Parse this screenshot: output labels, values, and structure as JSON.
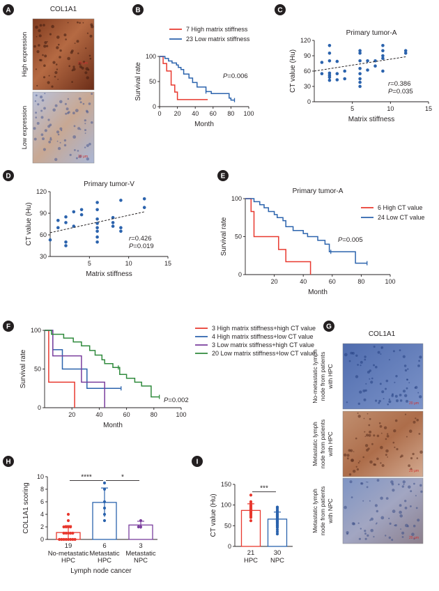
{
  "colors": {
    "red": "#e8382e",
    "blue": "#2b63ad",
    "green": "#2f8a3c",
    "purple": "#7a3e9d",
    "panel_letter_bg": "#231f20",
    "dot_blue": "#2b63ad",
    "stain_brown": "#9a4e2c",
    "stain_blue": "#6a83b8"
  },
  "panel_letters": [
    "A",
    "B",
    "C",
    "D",
    "E",
    "F",
    "G",
    "H",
    "I"
  ],
  "panel_a": {
    "title": "COL1A1",
    "labels": [
      "High expression",
      "Low expression"
    ],
    "scale_bar": "20 μm"
  },
  "panel_g": {
    "title": "COL1A1",
    "labels": [
      [
        "No-metastatic lymph",
        "node from patients",
        "with HPC"
      ],
      [
        "Metastatic lymph",
        "node from patients",
        "with HPC"
      ],
      [
        "Metastatic lymph",
        "node from patients",
        "with NPC"
      ]
    ],
    "scale_bar": "20 μm"
  },
  "chart_data": [
    {
      "id": "B",
      "type": "line",
      "subtype": "kaplan-meier",
      "title": "",
      "xlabel": "Month",
      "ylabel": "Survival rate",
      "xlim": [
        0,
        100
      ],
      "ylim": [
        0,
        100
      ],
      "xticks": [
        0,
        20,
        40,
        60,
        80,
        100
      ],
      "yticks": [
        0,
        50,
        100
      ],
      "pvalue": "P=0.006",
      "series": [
        {
          "name": "7 High matrix stiffness",
          "color": "red",
          "steps": [
            [
              0,
              100
            ],
            [
              4,
              100
            ],
            [
              4,
              86
            ],
            [
              8,
              86
            ],
            [
              8,
              71
            ],
            [
              13,
              71
            ],
            [
              13,
              43
            ],
            [
              17,
              43
            ],
            [
              17,
              29
            ],
            [
              20,
              29
            ],
            [
              20,
              14
            ],
            [
              54,
              14
            ]
          ],
          "censors": []
        },
        {
          "name": "23 Low matrix stiffness",
          "color": "blue",
          "steps": [
            [
              0,
              100
            ],
            [
              6,
              100
            ],
            [
              6,
              96
            ],
            [
              10,
              96
            ],
            [
              10,
              91
            ],
            [
              14,
              91
            ],
            [
              14,
              87
            ],
            [
              19,
              87
            ],
            [
              19,
              83
            ],
            [
              21,
              83
            ],
            [
              21,
              78
            ],
            [
              24,
              78
            ],
            [
              24,
              74
            ],
            [
              27,
              74
            ],
            [
              27,
              65
            ],
            [
              33,
              65
            ],
            [
              33,
              57
            ],
            [
              37,
              57
            ],
            [
              37,
              48
            ],
            [
              42,
              48
            ],
            [
              42,
              39
            ],
            [
              52,
              39
            ],
            [
              52,
              30
            ],
            [
              58,
              30
            ],
            [
              58,
              26
            ],
            [
              78,
              26
            ],
            [
              78,
              17
            ],
            [
              80,
              17
            ],
            [
              80,
              13
            ],
            [
              84,
              13
            ]
          ],
          "censors": [
            [
              52,
              30
            ],
            [
              84,
              13
            ]
          ]
        }
      ]
    },
    {
      "id": "C",
      "type": "scatter",
      "title": "Primary tumor-A",
      "xlabel": "Matrix stiffness",
      "ylabel": "CT value (Hu)",
      "xlim": [
        0,
        15
      ],
      "ylim": [
        0,
        120
      ],
      "xticks": [
        5,
        10,
        15
      ],
      "yticks": [
        0,
        30,
        60,
        90,
        120
      ],
      "stats": [
        "r=0.386",
        "P=0.035"
      ],
      "trend": [
        [
          0,
          60
        ],
        [
          12,
          88
        ]
      ],
      "points": [
        [
          1,
          55
        ],
        [
          1,
          77
        ],
        [
          2,
          52
        ],
        [
          2,
          56
        ],
        [
          2,
          42
        ],
        [
          2,
          48
        ],
        [
          2,
          80
        ],
        [
          2,
          95
        ],
        [
          2,
          110
        ],
        [
          3,
          55
        ],
        [
          3,
          79
        ],
        [
          3,
          43
        ],
        [
          4,
          45
        ],
        [
          4,
          60
        ],
        [
          6,
          30
        ],
        [
          6,
          38
        ],
        [
          6,
          45
        ],
        [
          6,
          55
        ],
        [
          6,
          65
        ],
        [
          6,
          80
        ],
        [
          6,
          95
        ],
        [
          6,
          100
        ],
        [
          7,
          62
        ],
        [
          7,
          80
        ],
        [
          8,
          70
        ],
        [
          8,
          80
        ],
        [
          9,
          90
        ],
        [
          9,
          85
        ],
        [
          9,
          60
        ],
        [
          9,
          100
        ],
        [
          9,
          110
        ],
        [
          12,
          95
        ],
        [
          12,
          100
        ]
      ]
    },
    {
      "id": "D",
      "type": "scatter",
      "title": "Primary tumor-V",
      "xlabel": "Matrix stiffness",
      "ylabel": "CT value (Hu)",
      "xlim": [
        0,
        15
      ],
      "ylim": [
        30,
        120
      ],
      "xticks": [
        5,
        10,
        15
      ],
      "yticks": [
        30,
        60,
        90,
        120
      ],
      "stats": [
        "r=0.426",
        "P=0.019"
      ],
      "trend": [
        [
          0,
          63
        ],
        [
          12,
          92
        ]
      ],
      "points": [
        [
          0,
          53
        ],
        [
          1,
          70
        ],
        [
          1,
          80
        ],
        [
          2,
          50
        ],
        [
          2,
          45
        ],
        [
          2,
          77
        ],
        [
          2,
          85
        ],
        [
          3,
          72
        ],
        [
          3,
          92
        ],
        [
          4,
          88
        ],
        [
          4,
          95
        ],
        [
          6,
          50
        ],
        [
          6,
          57
        ],
        [
          6,
          65
        ],
        [
          6,
          70
        ],
        [
          6,
          76
        ],
        [
          6,
          82
        ],
        [
          6,
          95
        ],
        [
          6,
          105
        ],
        [
          8,
          72
        ],
        [
          8,
          77
        ],
        [
          8,
          84
        ],
        [
          9,
          65
        ],
        [
          9,
          70
        ],
        [
          9,
          108
        ],
        [
          12,
          98
        ],
        [
          12,
          110
        ]
      ]
    },
    {
      "id": "E",
      "type": "line",
      "subtype": "kaplan-meier",
      "title": "Primary tumor-A",
      "xlabel": "Month",
      "ylabel": "Survival rate",
      "xlim": [
        0,
        100
      ],
      "ylim": [
        0,
        100
      ],
      "xticks": [
        20,
        40,
        60,
        80,
        100
      ],
      "yticks": [
        0,
        50,
        100
      ],
      "pvalue": "P=0.005",
      "series": [
        {
          "name": "6 High CT value",
          "color": "red",
          "steps": [
            [
              0,
              100
            ],
            [
              4,
              100
            ],
            [
              4,
              83
            ],
            [
              6,
              83
            ],
            [
              6,
              50
            ],
            [
              23,
              50
            ],
            [
              23,
              33
            ],
            [
              28,
              33
            ],
            [
              28,
              17
            ],
            [
              45,
              17
            ],
            [
              45,
              0
            ]
          ],
          "censors": []
        },
        {
          "name": "24 Low CT value",
          "color": "blue",
          "steps": [
            [
              0,
              100
            ],
            [
              6,
              100
            ],
            [
              6,
              96
            ],
            [
              10,
              96
            ],
            [
              10,
              92
            ],
            [
              13,
              92
            ],
            [
              13,
              88
            ],
            [
              16,
              88
            ],
            [
              16,
              83
            ],
            [
              20,
              83
            ],
            [
              20,
              79
            ],
            [
              22,
              79
            ],
            [
              22,
              75
            ],
            [
              26,
              75
            ],
            [
              26,
              71
            ],
            [
              28,
              71
            ],
            [
              28,
              63
            ],
            [
              33,
              63
            ],
            [
              33,
              58
            ],
            [
              40,
              58
            ],
            [
              40,
              54
            ],
            [
              43,
              54
            ],
            [
              43,
              50
            ],
            [
              50,
              50
            ],
            [
              50,
              45
            ],
            [
              55,
              45
            ],
            [
              55,
              40
            ],
            [
              58,
              40
            ],
            [
              58,
              30
            ],
            [
              76,
              30
            ],
            [
              76,
              15
            ],
            [
              84,
              15
            ]
          ],
          "censors": [
            [
              59,
              30
            ],
            [
              84,
              15
            ]
          ]
        }
      ]
    },
    {
      "id": "F",
      "type": "line",
      "subtype": "kaplan-meier",
      "title": "",
      "xlabel": "Month",
      "ylabel": "Survival rate",
      "xlim": [
        0,
        100
      ],
      "ylim": [
        0,
        100
      ],
      "xticks": [
        20,
        40,
        60,
        80,
        100
      ],
      "yticks": [
        0,
        50,
        100
      ],
      "pvalue": "P=0.002",
      "series": [
        {
          "name": "3 High matrix stiffness+high CT value",
          "color": "red",
          "steps": [
            [
              0,
              100
            ],
            [
              3,
              100
            ],
            [
              3,
              33
            ],
            [
              22,
              33
            ],
            [
              22,
              0
            ]
          ],
          "censors": []
        },
        {
          "name": "4 High matrix stiffness+low CT value",
          "color": "blue",
          "steps": [
            [
              0,
              100
            ],
            [
              6,
              100
            ],
            [
              6,
              75
            ],
            [
              13,
              75
            ],
            [
              13,
              50
            ],
            [
              31,
              50
            ],
            [
              31,
              25
            ],
            [
              56,
              25
            ]
          ],
          "censors": [
            [
              56,
              25
            ]
          ]
        },
        {
          "name": "3 Low matrix stiffness+high CT value",
          "color": "purple",
          "steps": [
            [
              0,
              100
            ],
            [
              6,
              100
            ],
            [
              6,
              67
            ],
            [
              27,
              67
            ],
            [
              27,
              33
            ],
            [
              44,
              33
            ],
            [
              44,
              0
            ]
          ],
          "censors": []
        },
        {
          "name": "20 Low matrix stiffness+low CT value",
          "color": "green",
          "steps": [
            [
              0,
              100
            ],
            [
              5,
              100
            ],
            [
              5,
              95
            ],
            [
              14,
              95
            ],
            [
              14,
              90
            ],
            [
              21,
              90
            ],
            [
              21,
              85
            ],
            [
              27,
              85
            ],
            [
              27,
              80
            ],
            [
              33,
              80
            ],
            [
              33,
              74
            ],
            [
              37,
              74
            ],
            [
              37,
              68
            ],
            [
              42,
              68
            ],
            [
              42,
              62
            ],
            [
              44,
              62
            ],
            [
              44,
              57
            ],
            [
              50,
              57
            ],
            [
              50,
              52
            ],
            [
              55,
              52
            ],
            [
              55,
              43
            ],
            [
              60,
              43
            ],
            [
              60,
              38
            ],
            [
              66,
              38
            ],
            [
              66,
              33
            ],
            [
              71,
              33
            ],
            [
              71,
              28
            ],
            [
              78,
              28
            ],
            [
              78,
              14
            ],
            [
              84,
              14
            ]
          ],
          "censors": [
            [
              54,
              52
            ],
            [
              84,
              14
            ]
          ]
        }
      ]
    },
    {
      "id": "H",
      "type": "bar",
      "subtype": "bar-with-dots",
      "xlabel": "Lymph node cancer",
      "ylabel": "COL1A1 scoring",
      "ylim": [
        0,
        10
      ],
      "yticks": [
        0,
        2,
        4,
        6,
        8,
        10
      ],
      "categories": [
        {
          "n": "19",
          "lines": [
            "No-metastatic",
            "HPC"
          ],
          "mean": 1.1,
          "sd": 1.1,
          "color": "red",
          "points": [
            0,
            0,
            0,
            0,
            0,
            0,
            0,
            0,
            1,
            1,
            1,
            1,
            1,
            2,
            2,
            2,
            2,
            3,
            4
          ]
        },
        {
          "n": "6",
          "lines": [
            "Metastatic",
            "HPC"
          ],
          "mean": 5.9,
          "sd": 2.3,
          "color": "blue",
          "points": [
            3,
            4,
            5,
            6,
            8,
            9
          ]
        },
        {
          "n": "3",
          "lines": [
            "Metastatic",
            "NPC"
          ],
          "mean": 2.3,
          "sd": 0.6,
          "color": "purple",
          "points": [
            2,
            2,
            3
          ]
        }
      ],
      "significance": [
        {
          "from": 0,
          "to": 1,
          "label": "****",
          "y": 9.4
        },
        {
          "from": 1,
          "to": 2,
          "label": "*",
          "y": 9.4
        }
      ]
    },
    {
      "id": "I",
      "type": "bar",
      "subtype": "bar-with-dots",
      "xlabel": "",
      "ylabel": "CT value (Hu)",
      "ylim": [
        0,
        150
      ],
      "yticks": [
        0,
        50,
        100,
        150
      ],
      "categories": [
        {
          "n": "21",
          "lines": [
            "HPC"
          ],
          "mean": 87,
          "sd": 16,
          "color": "red",
          "points": [
            62,
            70,
            72,
            75,
            78,
            80,
            82,
            84,
            86,
            87,
            88,
            89,
            90,
            92,
            94,
            96,
            98,
            100,
            104,
            108,
            124
          ]
        },
        {
          "n": "30",
          "lines": [
            "NPC"
          ],
          "mean": 66,
          "sd": 17,
          "color": "blue",
          "points": [
            30,
            35,
            40,
            45,
            48,
            50,
            52,
            55,
            57,
            58,
            60,
            61,
            62,
            63,
            64,
            65,
            66,
            67,
            68,
            70,
            72,
            74,
            75,
            77,
            79,
            82,
            85,
            88,
            92,
            95
          ]
        }
      ],
      "significance": [
        {
          "from": 0,
          "to": 1,
          "label": "***",
          "y": 132
        }
      ]
    }
  ]
}
